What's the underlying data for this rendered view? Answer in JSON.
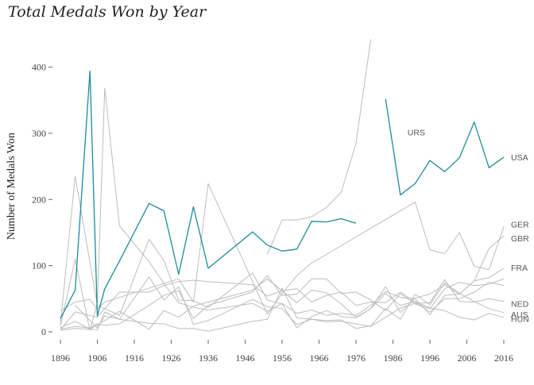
{
  "chart_data": {
    "type": "line",
    "title": "Total Medals Won by Year",
    "xlabel": "",
    "ylabel": "Number of Medals Won",
    "xlim": [
      1896,
      2016
    ],
    "ylim": [
      0,
      440
    ],
    "x_ticks": [
      1896,
      1906,
      1916,
      1926,
      1936,
      1946,
      1956,
      1966,
      1976,
      1986,
      1996,
      2006,
      2016
    ],
    "y_ticks": [
      0,
      100,
      200,
      300,
      400
    ],
    "grid": false,
    "legend": "direct labels at line ends",
    "colors": {
      "highlight": "#1f8a99",
      "background_series": "#bdbdbd",
      "label_text": "#555555"
    },
    "highlight": "USA",
    "series": [
      {
        "name": "USA",
        "x": [
          1896,
          1900,
          1904,
          1906,
          1908,
          1912,
          1920,
          1924,
          1928,
          1932,
          1936,
          1948,
          1952,
          1956,
          1960,
          1964,
          1968,
          1972,
          1976,
          1980,
          1984,
          1988,
          1992,
          1996,
          2000,
          2004,
          2008,
          2012,
          2016
        ],
        "values": [
          20,
          63,
          394,
          24,
          65,
          107,
          194,
          183,
          87,
          189,
          96,
          151,
          131,
          122,
          125,
          167,
          166,
          171,
          164,
          null,
          352,
          207,
          224,
          259,
          242,
          263,
          317,
          248,
          264
        ]
      },
      {
        "name": "URS",
        "x": [
          1952,
          1956,
          1960,
          1964,
          1968,
          1972,
          1976,
          1980,
          1984,
          1988
        ],
        "values": [
          117,
          169,
          169,
          174,
          188,
          211,
          285,
          442,
          null,
          302
        ]
      },
      {
        "name": "GER",
        "x": [
          1896,
          1900,
          1904,
          1906,
          1908,
          1912,
          1928,
          1932,
          1936,
          1952,
          1956,
          1960,
          1964,
          1968,
          1992,
          1996,
          2000,
          2004,
          2008,
          2012,
          2016
        ],
        "values": [
          32,
          45,
          49,
          34,
          45,
          52,
          80,
          45,
          224,
          27,
          58,
          85,
          104,
          117,
          196,
          124,
          118,
          150,
          99,
          94,
          159
        ]
      },
      {
        "name": "GBR",
        "x": [
          1896,
          1900,
          1904,
          1906,
          1908,
          1912,
          1920,
          1924,
          1928,
          1932,
          1936,
          1948,
          1952,
          1956,
          1960,
          1964,
          1968,
          1972,
          1976,
          1980,
          1984,
          1988,
          1992,
          1996,
          2000,
          2004,
          2008,
          2012,
          2016
        ],
        "values": [
          8,
          110,
          2,
          43,
          368,
          160,
          106,
          73,
          44,
          37,
          33,
          43,
          31,
          43,
          28,
          33,
          25,
          28,
          25,
          40,
          61,
          52,
          50,
          26,
          55,
          57,
          77,
          126,
          145
        ]
      },
      {
        "name": "FRA",
        "x": [
          1896,
          1900,
          1906,
          1908,
          1912,
          1920,
          1924,
          1928,
          1932,
          1936,
          1948,
          1952,
          1956,
          1960,
          1964,
          1968,
          1972,
          1976,
          1980,
          1984,
          1988,
          1992,
          1996,
          2000,
          2004,
          2008,
          2012,
          2016
        ],
        "values": [
          11,
          235,
          40,
          35,
          25,
          140,
          108,
          48,
          47,
          37,
          89,
          48,
          42,
          6,
          23,
          32,
          23,
          21,
          35,
          68,
          29,
          51,
          57,
          71,
          57,
          77,
          82,
          96
        ]
      },
      {
        "name": "AUS",
        "x": [
          1896,
          1900,
          1904,
          1906,
          1908,
          1912,
          1920,
          1924,
          1928,
          1932,
          1936,
          1948,
          1952,
          1956,
          1960,
          1964,
          1968,
          1972,
          1976,
          1980,
          1984,
          1988,
          1992,
          1996,
          2000,
          2004,
          2008,
          2012,
          2016
        ],
        "values": [
          2,
          5,
          4,
          3,
          30,
          19,
          13,
          12,
          5,
          5,
          1,
          16,
          19,
          66,
          21,
          19,
          17,
          18,
          5,
          9,
          35,
          19,
          57,
          41,
          74,
          58,
          46,
          35,
          29
        ]
      },
      {
        "name": "NED",
        "x": [
          1900,
          1906,
          1908,
          1912,
          1920,
          1924,
          1928,
          1932,
          1936,
          1948,
          1952,
          1956,
          1960,
          1964,
          1968,
          1972,
          1976,
          1980,
          1984,
          1988,
          1992,
          1996,
          2000,
          2004,
          2008,
          2012,
          2016
        ],
        "values": [
          40,
          6,
          24,
          19,
          83,
          48,
          68,
          11,
          17,
          49,
          38,
          35,
          11,
          19,
          15,
          16,
          12,
          8,
          22,
          36,
          43,
          44,
          79,
          46,
          45,
          50,
          46
        ]
      },
      {
        "name": "HUN",
        "x": [
          1896,
          1900,
          1904,
          1906,
          1908,
          1912,
          1920,
          1924,
          1928,
          1932,
          1936,
          1948,
          1952,
          1956,
          1960,
          1964,
          1968,
          1972,
          1976,
          1980,
          1984,
          1988,
          1992,
          1996,
          2000,
          2004,
          2008,
          2012,
          2016
        ],
        "values": [
          6,
          16,
          4,
          10,
          17,
          31,
          4,
          32,
          22,
          39,
          45,
          63,
          80,
          62,
          44,
          63,
          59,
          42,
          22,
          35,
          58,
          40,
          46,
          36,
          32,
          22,
          18,
          28,
          22
        ]
      },
      {
        "name": "",
        "x": [
          1896,
          1900,
          1906,
          1908,
          1912,
          1920,
          1924,
          1928,
          1932,
          1936,
          1948,
          1952,
          1956,
          1960,
          1964,
          1968,
          1972,
          1976,
          1980,
          1984,
          1988,
          1992,
          1996,
          2000,
          2004,
          2008,
          2012,
          2016
        ],
        "values": [
          3,
          30,
          22,
          35,
          60,
          60,
          70,
          76,
          78,
          76,
          71,
          54,
          62,
          65,
          45,
          55,
          60,
          40,
          45,
          44,
          60,
          45,
          30,
          50,
          50,
          60,
          75,
          70
        ]
      },
      {
        "name": "",
        "x": [
          1896,
          1900,
          1904,
          1906,
          1908,
          1912,
          1920,
          1924,
          1928,
          1932,
          1936,
          1948,
          1952,
          1956,
          1960,
          1964,
          1968,
          1972,
          1976,
          1980,
          1984,
          1988,
          1992,
          1996,
          2000,
          2004,
          2008,
          2012,
          2016
        ],
        "values": [
          4,
          8,
          6,
          12,
          10,
          12,
          40,
          55,
          62,
          20,
          40,
          60,
          85,
          55,
          57,
          80,
          80,
          58,
          60,
          48,
          32,
          58,
          42,
          35,
          65,
          75,
          70,
          72,
          80
        ]
      }
    ],
    "line_labels": [
      "URS",
      "USA",
      "GER",
      "GBR",
      "FRA",
      "AUS",
      "NED",
      "HUN"
    ]
  }
}
